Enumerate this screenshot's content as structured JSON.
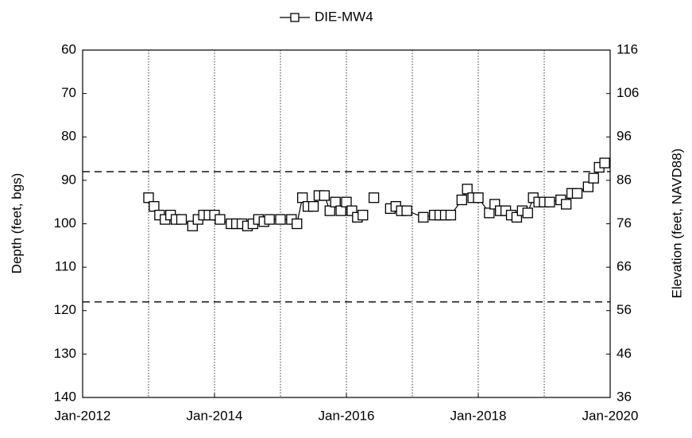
{
  "chart_data": {
    "type": "line",
    "series": [
      {
        "name": "DIE-MW4",
        "color": "#000000",
        "x": [
          "2013-01",
          "2013-02",
          "2013-03",
          "2013-04",
          "2013-05",
          "2013-06",
          "2013-07",
          "2013-09",
          "2013-10",
          "2013-11",
          "2013-12",
          "2014-01",
          "2014-02",
          "2014-04",
          "2014-05",
          "2014-06",
          "2014-07",
          "2014-08",
          "2014-09",
          "2014-10",
          "2014-11",
          "2015-01",
          "2015-03",
          "2015-04",
          "2015-05",
          "2015-06",
          "2015-07",
          "2015-08",
          "2015-09",
          "2015-10",
          "2015-11",
          "2015-12",
          "2016-01",
          "2016-02",
          "2016-03",
          "2016-04",
          "2016-05",
          "2016-06",
          "2016-07",
          "2016-09",
          "2016-10",
          "2016-11",
          "2016-12",
          "2017-03",
          "2017-05",
          "2017-06",
          "2017-07",
          "2017-08",
          "2017-10",
          "2017-11",
          "2017-12",
          "2018-01",
          "2018-03",
          "2018-04",
          "2018-05",
          "2018-06",
          "2018-07",
          "2018-08",
          "2018-09",
          "2018-10",
          "2018-11",
          "2018-12",
          "2019-01",
          "2019-02",
          "2019-04",
          "2019-05",
          "2019-06",
          "2019-07",
          "2019-09",
          "2019-10",
          "2019-11",
          "2019-12"
        ],
        "values": [
          94,
          96,
          98,
          99,
          98,
          99,
          99,
          100.5,
          99,
          98,
          98,
          98,
          99,
          100,
          100,
          100,
          100.5,
          100,
          99,
          99.5,
          99,
          99,
          99,
          100,
          94,
          96,
          96,
          93.5,
          93.5,
          97,
          95,
          97,
          95,
          97,
          98.5,
          98,
          null,
          94,
          null,
          96.5,
          96,
          97,
          97,
          98.5,
          98,
          98,
          98,
          98,
          94.5,
          92,
          94,
          94,
          97.5,
          95.5,
          97,
          97,
          98,
          98.5,
          97,
          97.5,
          94,
          95,
          95,
          95,
          94.5,
          95.5,
          93,
          93,
          91.5,
          89.5,
          87,
          86
        ]
      }
    ],
    "xlim": [
      "2012-01",
      "2020-01"
    ],
    "xticks": [
      {
        "value": "2012-01",
        "label": "Jan-2012"
      },
      {
        "value": "2014-01",
        "label": "Jan-2014"
      },
      {
        "value": "2016-01",
        "label": "Jan-2016"
      },
      {
        "value": "2018-01",
        "label": "Jan-2018"
      },
      {
        "value": "2020-01",
        "label": "Jan-2020"
      }
    ],
    "xgrid": [
      "2013-01",
      "2014-01",
      "2015-01",
      "2016-01",
      "2017-01",
      "2018-01",
      "2019-01"
    ],
    "ylim": [
      60,
      140
    ],
    "y_inverted": true,
    "yticks": [
      60,
      70,
      80,
      90,
      100,
      110,
      120,
      130,
      140
    ],
    "y2lim": [
      36,
      116
    ],
    "y2ticks": [
      116,
      106,
      96,
      86,
      76,
      66,
      56,
      46,
      36
    ],
    "y_label": "Depth (feet, bgs)",
    "y2_label": "Elevation (feet, NAVD88)",
    "reference_lines": [
      88,
      118
    ],
    "legend": "top"
  }
}
